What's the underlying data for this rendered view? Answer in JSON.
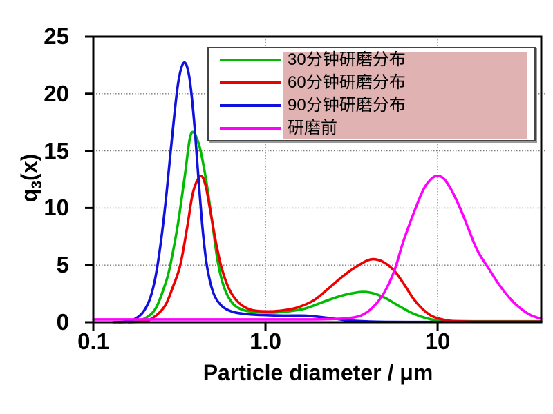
{
  "chart_data": {
    "type": "line",
    "title": "",
    "x_axis": {
      "label": "Particle diameter / μm",
      "scale": "log",
      "range": [
        0.1,
        40
      ],
      "ticks": [
        0.1,
        1.0,
        10
      ],
      "tick_labels": [
        "0.1",
        "1.0",
        "10"
      ]
    },
    "y_axis": {
      "label": "q3(x)",
      "label_base": "q",
      "label_sub": "3",
      "label_rest": "(x)",
      "range": [
        0,
        25
      ],
      "ticks": [
        0,
        5,
        10,
        15,
        20,
        25
      ],
      "tick_labels": [
        "0",
        "5",
        "10",
        "15",
        "20",
        "25"
      ]
    },
    "grid": {
      "style": "dotted",
      "color": "#7a7a7a",
      "h_lines": [
        5,
        10,
        15,
        20
      ],
      "v_lines": [
        1.0,
        10
      ]
    },
    "axis_color": "#000000",
    "legend": {
      "position": "top-right",
      "highlight_color": "#e0b2b2",
      "border_color": "#444444"
    },
    "series": [
      {
        "id": "curve-30min",
        "name": "30分钟研磨分布",
        "color": "#00bb00",
        "points": [
          [
            0.14,
            0
          ],
          [
            0.17,
            0.05
          ],
          [
            0.2,
            0.35
          ],
          [
            0.23,
            1.2
          ],
          [
            0.26,
            3.2
          ],
          [
            0.28,
            5.0
          ],
          [
            0.31,
            8.6
          ],
          [
            0.34,
            12.8
          ],
          [
            0.37,
            16.5
          ],
          [
            0.41,
            15.6
          ],
          [
            0.45,
            12.6
          ],
          [
            0.49,
            8.8
          ],
          [
            0.53,
            5.2
          ],
          [
            0.58,
            2.9
          ],
          [
            0.65,
            1.6
          ],
          [
            0.75,
            1.05
          ],
          [
            0.9,
            0.9
          ],
          [
            1.1,
            0.85
          ],
          [
            1.35,
            0.95
          ],
          [
            1.7,
            1.2
          ],
          [
            2.1,
            1.7
          ],
          [
            2.6,
            2.2
          ],
          [
            3.1,
            2.5
          ],
          [
            3.7,
            2.65
          ],
          [
            4.3,
            2.5
          ],
          [
            5.0,
            2.1
          ],
          [
            6.0,
            1.4
          ],
          [
            7.0,
            0.85
          ],
          [
            8.0,
            0.5
          ],
          [
            9.0,
            0.28
          ],
          [
            10,
            0.15
          ],
          [
            12,
            0.1
          ],
          [
            16,
            0.08
          ],
          [
            25,
            0.08
          ],
          [
            40,
            0.08
          ]
        ]
      },
      {
        "id": "curve-60min",
        "name": "60分钟研磨分布",
        "color": "#ee0000",
        "points": [
          [
            0.16,
            0
          ],
          [
            0.19,
            0.05
          ],
          [
            0.22,
            0.35
          ],
          [
            0.26,
            1.4
          ],
          [
            0.29,
            3.1
          ],
          [
            0.32,
            5.0
          ],
          [
            0.35,
            8.2
          ],
          [
            0.38,
            11.4
          ],
          [
            0.42,
            12.8
          ],
          [
            0.45,
            11.9
          ],
          [
            0.48,
            9.6
          ],
          [
            0.52,
            6.7
          ],
          [
            0.56,
            4.6
          ],
          [
            0.62,
            2.8
          ],
          [
            0.7,
            1.7
          ],
          [
            0.82,
            1.1
          ],
          [
            1.0,
            0.95
          ],
          [
            1.2,
            1.0
          ],
          [
            1.5,
            1.25
          ],
          [
            1.9,
            1.9
          ],
          [
            2.3,
            2.9
          ],
          [
            2.8,
            4.0
          ],
          [
            3.4,
            4.9
          ],
          [
            4.1,
            5.5
          ],
          [
            4.8,
            5.3
          ],
          [
            5.6,
            4.5
          ],
          [
            6.4,
            3.3
          ],
          [
            7.2,
            2.1
          ],
          [
            8.0,
            1.3
          ],
          [
            9.0,
            0.65
          ],
          [
            10,
            0.35
          ],
          [
            11.5,
            0.15
          ],
          [
            13,
            0.08
          ],
          [
            16,
            0.05
          ],
          [
            25,
            0.05
          ],
          [
            40,
            0.05
          ]
        ]
      },
      {
        "id": "curve-90min",
        "name": "90分钟研磨分布",
        "color": "#1111dd",
        "points": [
          [
            0.13,
            0
          ],
          [
            0.155,
            0.05
          ],
          [
            0.175,
            0.3
          ],
          [
            0.195,
            0.9
          ],
          [
            0.215,
            2.2
          ],
          [
            0.235,
            4.8
          ],
          [
            0.26,
            9.8
          ],
          [
            0.285,
            15.8
          ],
          [
            0.31,
            20.8
          ],
          [
            0.335,
            22.7
          ],
          [
            0.36,
            21.6
          ],
          [
            0.385,
            17.6
          ],
          [
            0.41,
            12.2
          ],
          [
            0.435,
            7.6
          ],
          [
            0.46,
            4.7
          ],
          [
            0.5,
            2.5
          ],
          [
            0.56,
            1.4
          ],
          [
            0.65,
            0.9
          ],
          [
            0.8,
            0.7
          ],
          [
            1.0,
            0.62
          ],
          [
            1.3,
            0.58
          ],
          [
            1.7,
            0.58
          ],
          [
            2.1,
            0.45
          ],
          [
            2.6,
            0.28
          ],
          [
            3.2,
            0.13
          ],
          [
            4.0,
            0.06
          ],
          [
            5.0,
            0.03
          ],
          [
            7,
            0.02
          ],
          [
            15,
            0.02
          ],
          [
            40,
            0.02
          ]
        ]
      },
      {
        "id": "curve-before",
        "name": "研磨前",
        "color": "#ff00ff",
        "points": [
          [
            0.1,
            0.25
          ],
          [
            0.3,
            0.25
          ],
          [
            0.7,
            0.25
          ],
          [
            1.2,
            0.25
          ],
          [
            1.8,
            0.25
          ],
          [
            2.4,
            0.28
          ],
          [
            3.0,
            0.35
          ],
          [
            3.6,
            0.6
          ],
          [
            4.2,
            1.3
          ],
          [
            4.9,
            2.6
          ],
          [
            5.6,
            4.5
          ],
          [
            6.3,
            7.0
          ],
          [
            7.2,
            9.4
          ],
          [
            8.2,
            11.5
          ],
          [
            9.0,
            12.4
          ],
          [
            9.8,
            12.8
          ],
          [
            10.8,
            12.6
          ],
          [
            12,
            11.6
          ],
          [
            13.5,
            10.0
          ],
          [
            15,
            8.3
          ],
          [
            17,
            6.3
          ],
          [
            20,
            4.6
          ],
          [
            23,
            3.2
          ],
          [
            27,
            1.9
          ],
          [
            31,
            1.1
          ],
          [
            35,
            0.6
          ],
          [
            40,
            0.3
          ]
        ]
      }
    ]
  }
}
